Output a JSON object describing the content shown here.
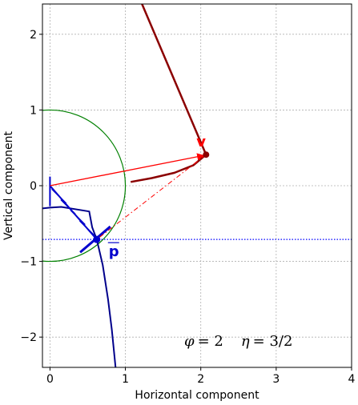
{
  "chart_data": {
    "type": "scatter",
    "xlabel": "Horizontal component",
    "ylabel": "Vertical component",
    "xlim": [
      -0.1,
      4
    ],
    "ylim": [
      -2.4,
      2.4
    ],
    "x_ticks": [
      0,
      1,
      2,
      3,
      4
    ],
    "y_ticks": [
      -2,
      -1,
      0,
      1,
      2
    ],
    "grid": true,
    "grid_style": "dotted",
    "annotation": {
      "phi_symbol": "φ",
      "phi_value": "= 2",
      "eta_symbol": "η",
      "eta_value": "= 3/2",
      "x": 1.78,
      "y": -2.05
    },
    "circle": {
      "center": [
        0,
        0
      ],
      "radius": 1,
      "color": "#008000"
    },
    "horizontal_line": {
      "y": -0.71,
      "color": "#0000ff",
      "style": "dotted"
    },
    "vector_v": {
      "label": "v",
      "from": [
        0,
        0
      ],
      "to": [
        2.07,
        0.41
      ],
      "color": "#ff0000"
    },
    "point_v": {
      "x": 2.07,
      "y": 0.41,
      "color": "#8b0000"
    },
    "point_p": {
      "label": "p",
      "x": 0.62,
      "y": -0.71,
      "color": "#0000cd"
    },
    "projection_line": {
      "from": [
        2.07,
        0.41
      ],
      "to": [
        0.62,
        -0.71
      ],
      "color": "#ff0000",
      "style": "dashdot"
    },
    "dark_red_line": {
      "points": [
        [
          1.22,
          2.4
        ],
        [
          2.07,
          0.41
        ]
      ],
      "color": "#8b0000"
    },
    "dark_red_arc": {
      "points": [
        [
          1.07,
          0.05
        ],
        [
          1.35,
          0.1
        ],
        [
          1.65,
          0.17
        ],
        [
          1.9,
          0.27
        ],
        [
          2.07,
          0.41
        ]
      ],
      "color": "#8b0000"
    },
    "navy_curve": {
      "color": "#00008b",
      "points": [
        [
          -0.1,
          -0.3
        ],
        [
          0.0,
          -0.29
        ],
        [
          0.15,
          -0.28
        ],
        [
          0.52,
          -0.34
        ],
        [
          0.56,
          -0.55
        ],
        [
          0.62,
          -0.71
        ],
        [
          0.7,
          -1.05
        ],
        [
          0.77,
          -1.5
        ],
        [
          0.82,
          -1.9
        ],
        [
          0.87,
          -2.4
        ]
      ]
    },
    "blue_segment": {
      "from": [
        0.0,
        -0.27
      ],
      "to": [
        0.0,
        0.12
      ],
      "color": "#0000cd"
    },
    "blue_chord": {
      "from": [
        0.0,
        0.0
      ],
      "to": [
        0.62,
        -0.71
      ],
      "color": "#0000cd"
    },
    "cross_ticks": [
      [
        0.12,
        -0.14
      ],
      [
        0.24,
        -0.28
      ],
      [
        0.37,
        -0.42
      ],
      [
        0.49,
        -0.56
      ]
    ],
    "normal_segment": {
      "from": [
        0.4,
        -0.88
      ],
      "to": [
        0.8,
        -0.54
      ],
      "color": "#0000cd"
    }
  }
}
